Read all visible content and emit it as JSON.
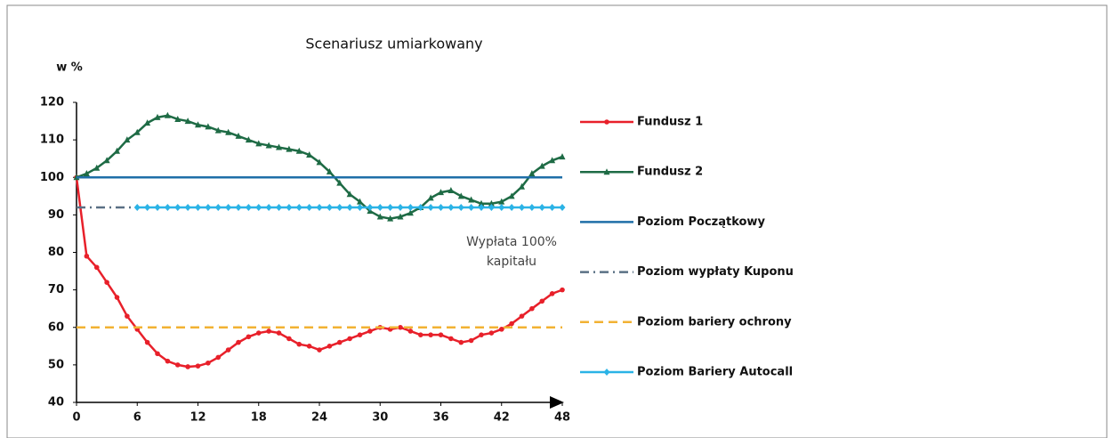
{
  "chart_data": {
    "type": "line",
    "title": "Scenariusz umiarkowany",
    "y_label": "w %",
    "annotation": [
      "Wypłata 100%",
      "kapitału"
    ],
    "x": [
      0,
      1,
      2,
      3,
      4,
      5,
      6,
      7,
      8,
      9,
      10,
      11,
      12,
      13,
      14,
      15,
      16,
      17,
      18,
      19,
      20,
      21,
      22,
      23,
      24,
      25,
      26,
      27,
      28,
      29,
      30,
      31,
      32,
      33,
      34,
      35,
      36,
      37,
      38,
      39,
      40,
      41,
      42,
      43,
      44,
      45,
      46,
      47,
      48
    ],
    "xlim": [
      0,
      48
    ],
    "xticks": [
      0,
      6,
      12,
      18,
      24,
      30,
      36,
      42,
      48
    ],
    "ylim": [
      40,
      120
    ],
    "yticks": [
      40,
      50,
      60,
      70,
      80,
      90,
      100,
      110,
      120
    ],
    "grid": false,
    "legend": "right",
    "series": [
      {
        "name": "Fundusz 1",
        "color": "#e8202a",
        "line_style": "solid",
        "marker": "circle",
        "values": [
          100,
          79,
          76,
          72,
          68,
          63,
          59.5,
          56,
          53,
          51,
          50,
          49.5,
          49.7,
          50.5,
          52,
          54,
          56,
          57.5,
          58.5,
          59,
          58.5,
          57,
          55.5,
          55,
          54,
          55,
          56,
          57,
          58,
          59,
          60,
          59.5,
          60,
          59,
          58,
          58,
          58,
          57,
          56,
          56.5,
          58,
          58.5,
          59.5,
          61,
          63,
          65,
          67,
          69,
          70
        ]
      },
      {
        "name": "Fundusz 2",
        "color": "#1e6b45",
        "line_style": "solid",
        "marker": "triangle",
        "values": [
          100,
          101,
          102.5,
          104.5,
          107,
          110,
          112,
          114.5,
          116,
          116.5,
          115.5,
          115,
          114,
          113.5,
          112.5,
          112,
          111,
          110,
          109,
          108.5,
          108,
          107.5,
          107,
          106,
          104,
          101.5,
          98.5,
          95.5,
          93.5,
          91,
          89.5,
          89,
          89.5,
          90.5,
          92,
          94.5,
          96,
          96.5,
          95,
          94,
          93,
          93,
          93.5,
          95,
          97.5,
          101,
          103,
          104.5,
          105.5
        ]
      },
      {
        "name": "Poziom Początkowy",
        "color": "#1f6fa8",
        "line_style": "solid",
        "values": [
          100,
          100,
          100,
          100,
          100,
          100,
          100,
          100,
          100,
          100,
          100,
          100,
          100,
          100,
          100,
          100,
          100,
          100,
          100,
          100,
          100,
          100,
          100,
          100,
          100,
          100,
          100,
          100,
          100,
          100,
          100,
          100,
          100,
          100,
          100,
          100,
          100,
          100,
          100,
          100,
          100,
          100,
          100,
          100,
          100,
          100,
          100,
          100,
          100
        ]
      },
      {
        "name": "Poziom wypłaty Kuponu",
        "color": "#5a7085",
        "line_style": "dashdot",
        "values": [
          92,
          92,
          92,
          92,
          92,
          92,
          92,
          null,
          null,
          null,
          null,
          null,
          null,
          null,
          null,
          null,
          null,
          null,
          null,
          null,
          null,
          null,
          null,
          null,
          null,
          null,
          null,
          null,
          null,
          null,
          null,
          null,
          null,
          null,
          null,
          null,
          null,
          null,
          null,
          null,
          null,
          null,
          null,
          null,
          null,
          null,
          null,
          null,
          null
        ]
      },
      {
        "name": "Poziom bariery ochrony",
        "color": "#f2b233",
        "line_style": "dashed",
        "values": [
          60,
          60,
          60,
          60,
          60,
          60,
          60,
          60,
          60,
          60,
          60,
          60,
          60,
          60,
          60,
          60,
          60,
          60,
          60,
          60,
          60,
          60,
          60,
          60,
          60,
          60,
          60,
          60,
          60,
          60,
          60,
          60,
          60,
          60,
          60,
          60,
          60,
          60,
          60,
          60,
          60,
          60,
          60,
          60,
          60,
          60,
          60,
          60,
          60
        ]
      },
      {
        "name": "Poziom Bariery Autocall",
        "color": "#2bb3e6",
        "line_style": "solid",
        "marker": "diamond",
        "values": [
          null,
          null,
          null,
          null,
          null,
          null,
          92,
          92,
          92,
          92,
          92,
          92,
          92,
          92,
          92,
          92,
          92,
          92,
          92,
          92,
          92,
          92,
          92,
          92,
          92,
          92,
          92,
          92,
          92,
          92,
          92,
          92,
          92,
          92,
          92,
          92,
          92,
          92,
          92,
          92,
          92,
          92,
          92,
          92,
          92,
          92,
          92,
          92,
          92
        ]
      }
    ]
  }
}
